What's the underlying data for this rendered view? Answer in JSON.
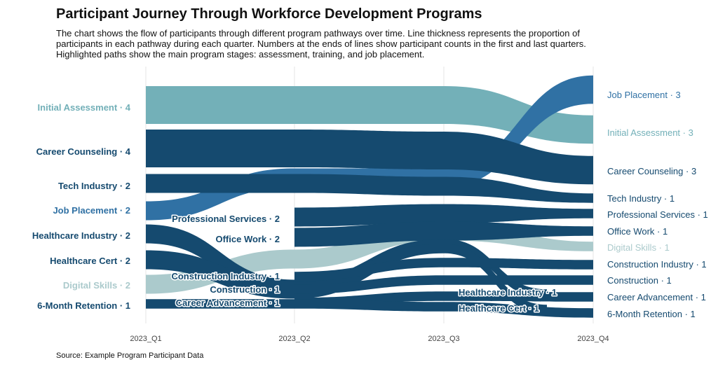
{
  "title": "Participant Journey Through Workforce Development Programs",
  "subtitle": [
    "The chart shows the flow of participants through different program pathways over time. Line thickness represents the proportion of",
    "participants in each pathway during each quarter. Numbers at the ends of lines show participant counts in the first and last quarters.",
    "Highlighted paths show the main program stages: assessment, training, and job placement."
  ],
  "source": "Source: Example Program Participant Data",
  "colors": {
    "dark": "#154a6f",
    "mid": "#3071a4",
    "teal": "#73b0b8",
    "light": "#abcacc",
    "grid": "#e6e6e6"
  },
  "chart_data": {
    "type": "alluvial",
    "x": [
      "2023_Q1",
      "2023_Q2",
      "2023_Q3",
      "2023_Q4"
    ],
    "left_labels": [
      {
        "text": "Initial Assessment · 4",
        "color": "teal"
      },
      {
        "text": "Career Counseling · 4",
        "color": "dark"
      },
      {
        "text": "Tech Industry · 2",
        "color": "dark"
      },
      {
        "text": "Job Placement · 2",
        "color": "mid"
      },
      {
        "text": "Healthcare Industry · 2",
        "color": "dark"
      },
      {
        "text": "Healthcare Cert · 2",
        "color": "dark"
      },
      {
        "text": "Digital Skills · 2",
        "color": "light"
      },
      {
        "text": "6-Month Retention · 1",
        "color": "dark"
      }
    ],
    "mid_labels": [
      {
        "text": "Professional Services · 2",
        "color": "dark"
      },
      {
        "text": "Office Work · 2",
        "color": "dark"
      },
      {
        "text": "Construction Industry · 1",
        "color": "dark"
      },
      {
        "text": "Construction · 1",
        "color": "dark"
      },
      {
        "text": "Career Advancement · 1",
        "color": "dark"
      },
      {
        "text": "Healthcare Industry · 1",
        "color": "dark"
      },
      {
        "text": "Healthcare Cert · 1",
        "color": "dark"
      }
    ],
    "right_labels": [
      {
        "text": "Job Placement · 3",
        "color": "mid"
      },
      {
        "text": "Initial Assessment · 3",
        "color": "teal"
      },
      {
        "text": "Career Counseling · 3",
        "color": "dark"
      },
      {
        "text": "Tech Industry · 1",
        "color": "dark"
      },
      {
        "text": "Professional Services · 1",
        "color": "dark"
      },
      {
        "text": "Office Work · 1",
        "color": "dark"
      },
      {
        "text": "Digital Skills · 1",
        "color": "light"
      },
      {
        "text": "Construction Industry · 1",
        "color": "dark"
      },
      {
        "text": "Construction · 1",
        "color": "dark"
      },
      {
        "text": "Career Advancement · 1",
        "color": "dark"
      },
      {
        "text": "6-Month Retention · 1",
        "color": "dark"
      }
    ],
    "flows": [
      {
        "name": "Initial Assessment",
        "color": "teal",
        "values": [
          4,
          4,
          4,
          3
        ]
      },
      {
        "name": "Career Counseling",
        "color": "dark",
        "values": [
          4,
          4,
          4,
          3
        ]
      },
      {
        "name": "Job Placement",
        "color": "mid",
        "values": [
          2,
          2,
          2,
          3
        ]
      },
      {
        "name": "Tech Industry",
        "color": "dark",
        "values": [
          2,
          2,
          2,
          1
        ]
      },
      {
        "name": "Professional Services",
        "color": "dark",
        "values": [
          null,
          2,
          2,
          1
        ]
      },
      {
        "name": "Office Work",
        "color": "dark",
        "values": [
          null,
          2,
          2,
          1
        ]
      },
      {
        "name": "Digital Skills",
        "color": "light",
        "values": [
          2,
          2,
          2,
          1
        ]
      },
      {
        "name": "Healthcare Industry",
        "color": "dark",
        "values": [
          2,
          2,
          1,
          null
        ]
      },
      {
        "name": "Healthcare Cert",
        "color": "dark",
        "values": [
          2,
          2,
          1,
          null
        ]
      },
      {
        "name": "Construction Industry",
        "color": "dark",
        "values": [
          null,
          1,
          1,
          1
        ]
      },
      {
        "name": "Construction",
        "color": "dark",
        "values": [
          null,
          1,
          1,
          1
        ]
      },
      {
        "name": "Career Advancement",
        "color": "dark",
        "values": [
          null,
          1,
          1,
          1
        ]
      },
      {
        "name": "6-Month Retention",
        "color": "dark",
        "values": [
          1,
          1,
          1,
          1
        ]
      }
    ]
  }
}
